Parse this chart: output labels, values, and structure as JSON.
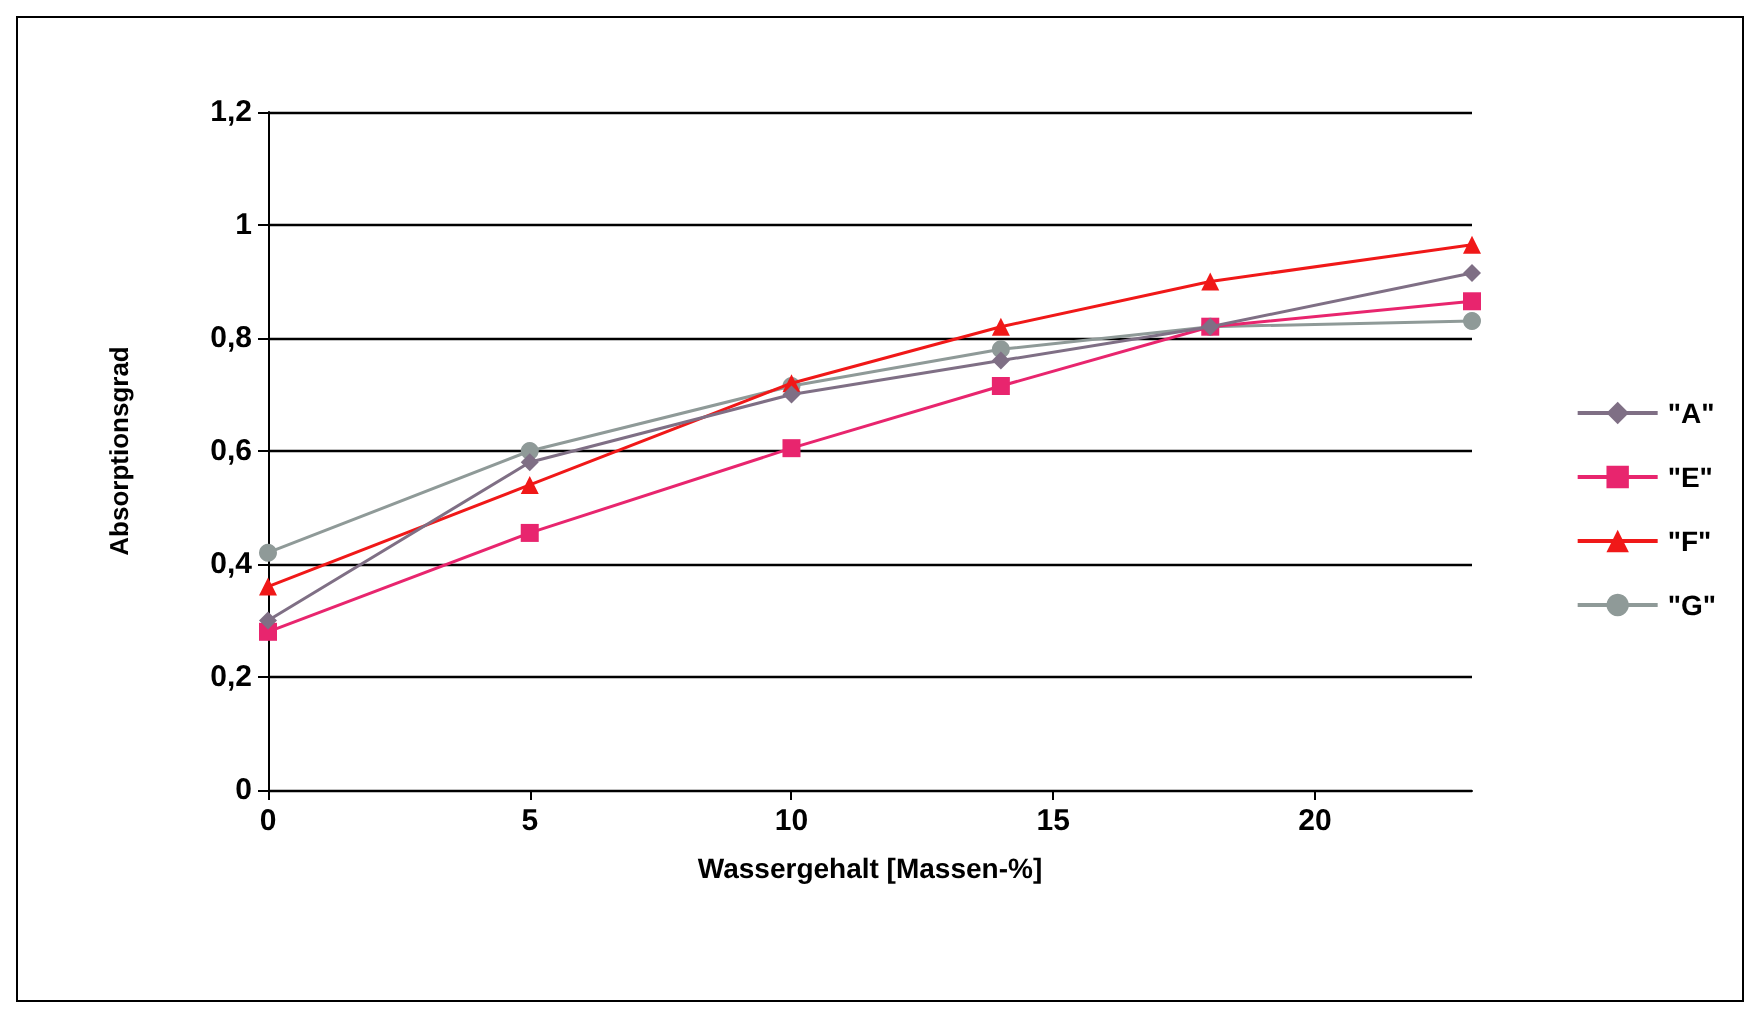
{
  "chart_data": {
    "type": "line",
    "xlabel": "Wassergehalt [Massen-%]",
    "ylabel": "Absorptionsgrad",
    "x": [
      0,
      5,
      10,
      14,
      18,
      23
    ],
    "series": [
      {
        "name": "\"A\"",
        "color": "#7f6f85",
        "marker": "diamond",
        "values": [
          0.3,
          0.58,
          0.7,
          0.76,
          0.82,
          0.915
        ]
      },
      {
        "name": "\"E\"",
        "color": "#e8256e",
        "marker": "square",
        "values": [
          0.28,
          0.455,
          0.605,
          0.715,
          0.82,
          0.865
        ]
      },
      {
        "name": "\"F\"",
        "color": "#f01818",
        "marker": "triangle",
        "values": [
          0.36,
          0.54,
          0.72,
          0.82,
          0.9,
          0.965
        ]
      },
      {
        "name": "\"G\"",
        "color": "#8f9a98",
        "marker": "circle",
        "values": [
          0.42,
          0.6,
          0.715,
          0.78,
          0.82,
          0.83
        ]
      }
    ],
    "xlim": [
      0,
      23
    ],
    "xticks": [
      0,
      5,
      10,
      15,
      20
    ],
    "ylim": [
      0,
      1.2
    ],
    "yticks": [
      {
        "value": 0,
        "label": "0"
      },
      {
        "value": 0.2,
        "label": "0,2"
      },
      {
        "value": 0.4,
        "label": "0,4"
      },
      {
        "value": 0.6,
        "label": "0,6"
      },
      {
        "value": 0.8,
        "label": "0,8"
      },
      {
        "value": 1,
        "label": "1"
      },
      {
        "value": 1.2,
        "label": "1,2"
      }
    ],
    "grid": "y",
    "legend": "right"
  }
}
